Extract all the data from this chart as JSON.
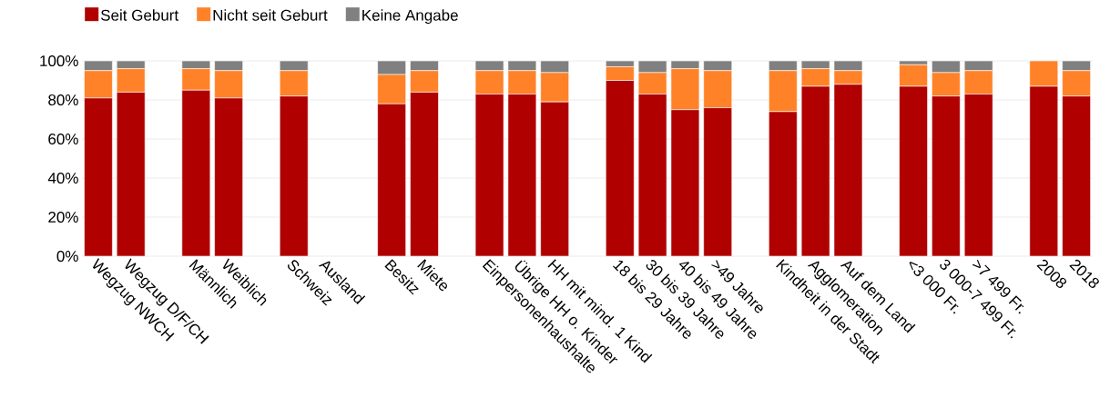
{
  "chart_data": {
    "type": "bar",
    "stacked": true,
    "categories": [
      "Wegzug NWCH",
      "Wegzug D/F/CH",
      null,
      "Männlich",
      "Weiblich",
      null,
      "Schweiz",
      "Ausland",
      null,
      "Besitz",
      "Miete",
      null,
      "Einpersonenhaushalte",
      "Übrige HH o. Kinder",
      "HH mit mind. 1 Kind",
      null,
      "18 bis 29 Jahre",
      "30 bis 39 Jahre",
      "40 bis 49 Jahre",
      ">49 Jahre",
      null,
      "Kindheit in der Stadt",
      "Agglomeration",
      "Auf dem Land",
      null,
      "<3 000 Fr.",
      "3 000-7 499 Fr.",
      ">7 499 Fr.",
      null,
      "2008",
      "2018"
    ],
    "series": [
      {
        "name": "Seit Geburt",
        "color": "#b00000",
        "values": [
          81,
          84,
          null,
          85,
          81,
          null,
          82,
          null,
          null,
          78,
          84,
          null,
          83,
          83,
          79,
          null,
          90,
          83,
          75,
          76,
          null,
          74,
          87,
          88,
          null,
          87,
          82,
          83,
          null,
          87,
          82
        ]
      },
      {
        "name": "Nicht seit Geburt",
        "color": "#ff8228",
        "values": [
          14,
          12,
          null,
          11,
          14,
          null,
          13,
          null,
          null,
          15,
          11,
          null,
          12,
          12,
          15,
          null,
          7,
          11,
          21,
          19,
          null,
          21,
          9,
          7,
          null,
          11,
          12,
          12,
          null,
          13,
          13
        ]
      },
      {
        "name": "Keine Angabe",
        "color": "#808080",
        "values": [
          5,
          4,
          null,
          4,
          5,
          null,
          5,
          null,
          null,
          7,
          5,
          null,
          5,
          5,
          6,
          null,
          3,
          6,
          4,
          5,
          null,
          5,
          4,
          5,
          null,
          2,
          6,
          5,
          null,
          0,
          5
        ]
      }
    ],
    "ylim": [
      0,
      100
    ],
    "yticks": [
      {
        "value": 0,
        "label": "0%"
      },
      {
        "value": 20,
        "label": "20%"
      },
      {
        "value": 40,
        "label": "40%"
      },
      {
        "value": 60,
        "label": "60%"
      },
      {
        "value": 80,
        "label": "80%"
      },
      {
        "value": 100,
        "label": "100%"
      }
    ],
    "grid": "y",
    "legend": "top left"
  }
}
